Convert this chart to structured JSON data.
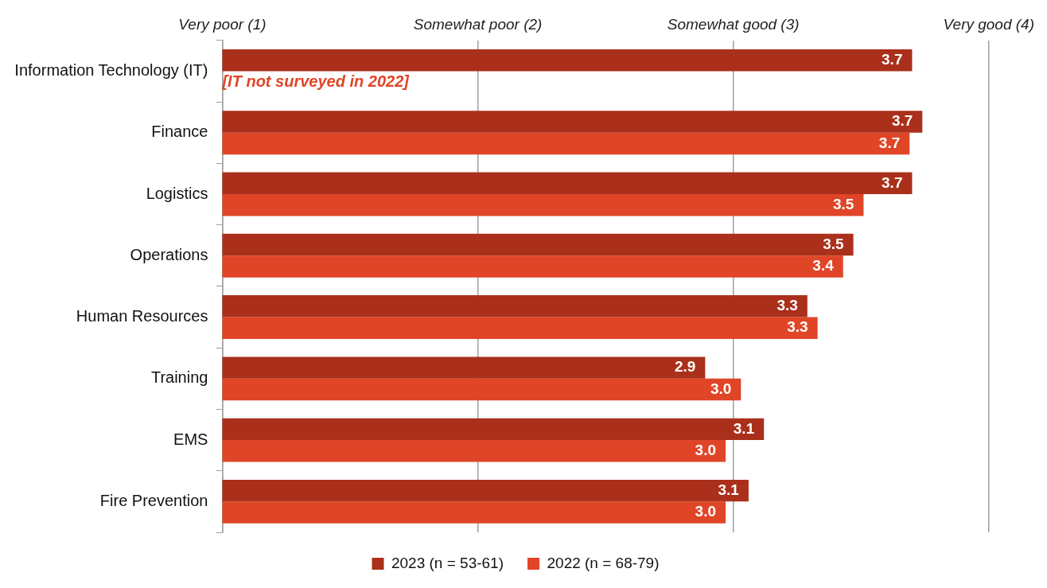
{
  "chart_data": {
    "type": "bar",
    "orientation": "horizontal",
    "categories": [
      "Information Technology (IT)",
      "Finance",
      "Logistics",
      "Operations",
      "Human Resources",
      "Training",
      "EMS",
      "Fire Prevention"
    ],
    "series": [
      {
        "name": "2023 (n = 53-61)",
        "color": "#aa301b",
        "values": [
          3.7,
          3.74,
          3.7,
          3.47,
          3.29,
          2.89,
          3.12,
          3.06
        ],
        "value_labels": [
          "3.7",
          "3.7",
          "3.7",
          "3.5",
          "3.3",
          "2.9",
          "3.1",
          "3.1"
        ]
      },
      {
        "name": "2022 (n = 68-79)",
        "color": "#e04527",
        "values": [
          null,
          3.69,
          3.51,
          3.43,
          3.33,
          3.03,
          2.97,
          2.97
        ],
        "value_labels": [
          null,
          "3.7",
          "3.5",
          "3.4",
          "3.3",
          "3.0",
          "3.0",
          "3.0"
        ]
      }
    ],
    "xlim": [
      1,
      4
    ],
    "xticks": [
      {
        "value": 1,
        "label": "Very poor (1)"
      },
      {
        "value": 2,
        "label": "Somewhat poor (2)"
      },
      {
        "value": 3,
        "label": "Somewhat good (3)"
      },
      {
        "value": 4,
        "label": "Very good (4)"
      }
    ],
    "annotations": [
      {
        "text": "[IT not surveyed in 2022]",
        "x": 1,
        "y": "Information Technology (IT)"
      }
    ],
    "grid": "x",
    "legend": "bottom"
  }
}
